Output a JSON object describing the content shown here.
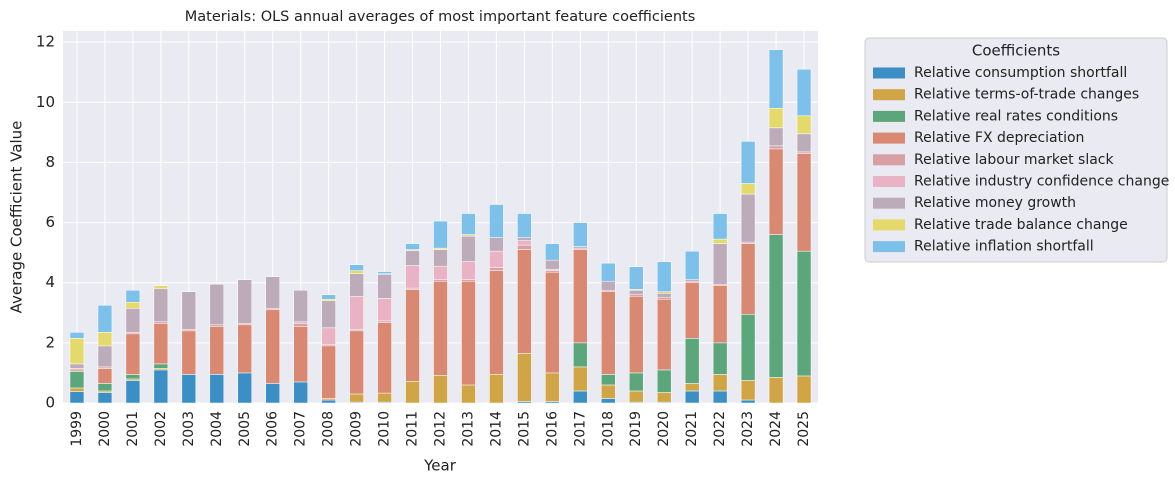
{
  "chart_data": {
    "type": "stacked_bar",
    "title": "Materials: OLS annual averages of most important feature coefficients",
    "x_label": "Year",
    "y_label": "Average Coefficient Value",
    "legend_title": "Coefficients",
    "grid": true,
    "categories": [
      "1999",
      "2000",
      "2001",
      "2002",
      "2003",
      "2004",
      "2005",
      "2006",
      "2007",
      "2008",
      "2009",
      "2010",
      "2011",
      "2012",
      "2013",
      "2014",
      "2015",
      "2016",
      "2017",
      "2018",
      "2019",
      "2020",
      "2021",
      "2022",
      "2023",
      "2024",
      "2025"
    ],
    "ylim": [
      0,
      12.37
    ],
    "yticks": [
      0,
      2,
      4,
      6,
      8,
      10,
      12
    ],
    "series": [
      {
        "name": "Relative consumption shortfall",
        "color": "#3b8fc4",
        "values": [
          0.38,
          0.35,
          0.75,
          1.1,
          0.95,
          0.95,
          1.0,
          0.65,
          0.7,
          0.1,
          0.03,
          0.03,
          0,
          0,
          0,
          0,
          0.05,
          0.05,
          0.4,
          0.15,
          0.03,
          0.03,
          0.4,
          0.4,
          0.1,
          0,
          0
        ]
      },
      {
        "name": "Relative terms-of-trade changes",
        "color": "#cfa545",
        "values": [
          0.12,
          0.05,
          0.05,
          0.05,
          0,
          0,
          0,
          0,
          0,
          0.05,
          0.27,
          0.3,
          0.72,
          0.92,
          0.6,
          0.95,
          1.6,
          0.95,
          0.8,
          0.45,
          0.37,
          0.32,
          0.25,
          0.55,
          0.65,
          0.85,
          0.9
        ]
      },
      {
        "name": "Relative real rates conditions",
        "color": "#5ca67b",
        "values": [
          0.55,
          0.25,
          0.15,
          0.15,
          0,
          0,
          0,
          0,
          0,
          0,
          0,
          0,
          0,
          0,
          0,
          0,
          0,
          0,
          0.8,
          0.35,
          0.6,
          0.75,
          1.5,
          1.05,
          2.2,
          4.75,
          4.15
        ]
      },
      {
        "name": "Relative FX depreciation",
        "color": "#d98871",
        "values": [
          0.05,
          0.5,
          1.35,
          1.35,
          1.45,
          1.6,
          1.6,
          2.45,
          1.85,
          1.75,
          2.1,
          2.35,
          3.05,
          3.13,
          3.45,
          3.45,
          3.45,
          3.35,
          3.1,
          2.75,
          2.55,
          2.35,
          1.85,
          1.9,
          2.35,
          2.85,
          3.25
        ]
      },
      {
        "name": "Relative labour market slack",
        "color": "#d6a0a5",
        "values": [
          0.05,
          0.05,
          0.05,
          0.05,
          0.05,
          0.05,
          0.05,
          0.05,
          0.1,
          0.05,
          0.05,
          0.05,
          0.05,
          0.05,
          0.05,
          0.1,
          0.15,
          0.05,
          0.05,
          0.05,
          0.05,
          0.05,
          0.05,
          0.05,
          0.05,
          0.1,
          0.05
        ]
      },
      {
        "name": "Relative industry confidence change",
        "color": "#e9b3c5",
        "values": [
          0,
          0,
          0,
          0,
          0,
          0,
          0,
          0,
          0.05,
          0.55,
          1.1,
          0.75,
          0.75,
          0.45,
          0.6,
          0.55,
          0.15,
          0.05,
          0,
          0,
          0,
          0,
          0,
          0,
          0,
          0,
          0
        ]
      },
      {
        "name": "Relative money growth",
        "color": "#bcacb9",
        "values": [
          0.15,
          0.7,
          0.8,
          1.1,
          1.25,
          1.35,
          1.45,
          1.05,
          1.05,
          0.9,
          0.75,
          0.8,
          0.5,
          0.55,
          0.85,
          0.45,
          0.1,
          0.3,
          0.05,
          0.3,
          0.15,
          0.15,
          0.05,
          1.35,
          1.6,
          0.6,
          0.6
        ]
      },
      {
        "name": "Relative trade balance change",
        "color": "#e4da6b",
        "values": [
          0.85,
          0.45,
          0.2,
          0.1,
          0,
          0,
          0,
          0,
          0,
          0.05,
          0.1,
          0.02,
          0.03,
          0.05,
          0.05,
          0,
          0,
          0,
          0,
          0,
          0.03,
          0.05,
          0,
          0.15,
          0.35,
          0.65,
          0.6
        ]
      },
      {
        "name": "Relative inflation shortfall",
        "color": "#7dc1ea",
        "values": [
          0.2,
          0.9,
          0.4,
          0,
          0,
          0,
          0,
          0,
          0,
          0.15,
          0.2,
          0.07,
          0.2,
          0.9,
          0.7,
          1.1,
          0.8,
          0.55,
          0.8,
          0.6,
          0.75,
          1.0,
          0.95,
          0.85,
          1.4,
          1.95,
          1.55
        ]
      }
    ]
  }
}
